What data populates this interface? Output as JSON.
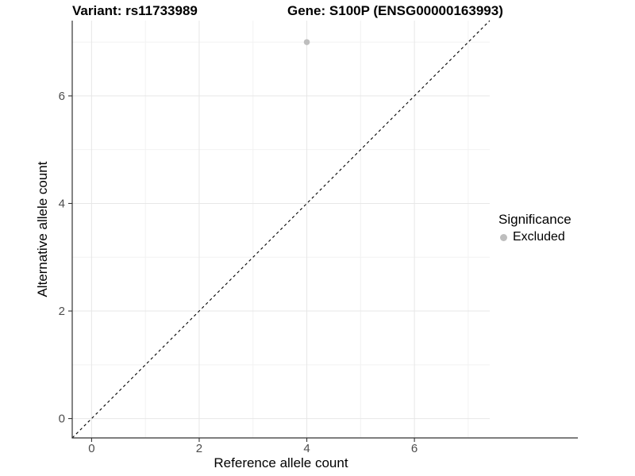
{
  "header": {
    "title_variant": "Variant: rs11733989",
    "title_gene": "Gene: S100P (ENSG00000163993)"
  },
  "chart_data": {
    "type": "scatter",
    "titles": [
      "Variant: rs11733989",
      "Gene: S100P (ENSG00000163993)"
    ],
    "xlabel": "Reference allele count",
    "ylabel": "Alternative allele count",
    "xlim": [
      -0.36,
      7.4
    ],
    "ylim": [
      -0.36,
      7.4
    ],
    "xticks": [
      0,
      2,
      4,
      6
    ],
    "yticks": [
      0,
      2,
      4,
      6
    ],
    "x_minor_ticks": [
      1,
      3,
      5,
      7
    ],
    "y_minor_ticks": [
      1,
      3,
      5,
      7
    ],
    "grid": "on",
    "legend_position": "right",
    "points": [
      {
        "x": 4,
        "y": 7,
        "series": "Excluded"
      }
    ],
    "reference_line": {
      "slope": 1,
      "intercept": 0,
      "style": "dashed",
      "color": "#000000"
    },
    "colors": {
      "point_excluded": "#bebebe",
      "grid_major": "#e7e7e7",
      "grid_minor": "#f2f2f2",
      "axis_line": "#333333",
      "tick_label": "#4d4d4d"
    }
  },
  "legend": {
    "title": "Significance",
    "items": [
      {
        "label": "Excluded",
        "color": "#bebebe"
      }
    ]
  }
}
